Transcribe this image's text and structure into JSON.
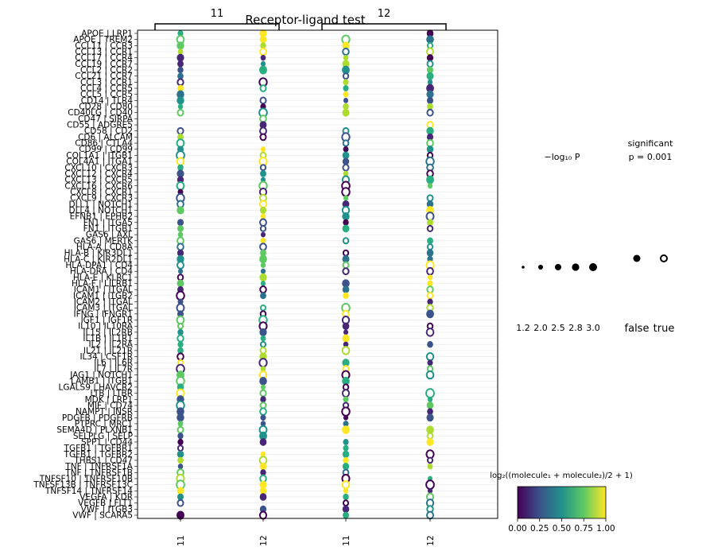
{
  "chart_data": {
    "type": "scatter",
    "title": "Receptor-ligand test",
    "groups": [
      {
        "label": "11",
        "columns": [
          "11",
          "12"
        ]
      },
      {
        "label": "12",
        "columns": [
          "11",
          "12"
        ]
      }
    ],
    "x_tick_labels": [
      "11",
      "12",
      "11",
      "12"
    ],
    "row_labels": [
      "APOE | LRP1",
      "APOE | TREM2",
      "CCL11 | CCR3",
      "CCL13 | CCR1",
      "CCL17 | CCR4",
      "CCL19 | CCR7",
      "CCL2 | CCR2",
      "CCL21 | CCR7",
      "CCL3 | CCR1",
      "CCL4 | CCR5",
      "CCL5 | CCR5",
      "CD14 | TLR4",
      "CD28 | CD80",
      "CD40LG | CD40",
      "CD47 | SIRPA",
      "CD55 | ADGRE5",
      "CD58 | CD2",
      "CD6 | ALCAM",
      "CD86 | CTLA4",
      "CD99 | CD99",
      "COL1A1 | ITGB1",
      "COL4A1 | ITGA1",
      "CXCL10 | CXCR3",
      "CXCL12 | CXCR4",
      "CXCL13 | CXCR5",
      "CXCL16 | CXCR6",
      "CXCL8 | CXCR1",
      "CXCL9 | CXCR3",
      "DLL1 | NOTCH1",
      "DLL4 | NOTCH1",
      "EFNB1 | EPHB2",
      "FN1 | ITGA5",
      "FN1 | ITGB1",
      "GAS6 | AXL",
      "GAS6 | MERTK",
      "HLA-A | CD8A",
      "HLA-B | KIR3DL1",
      "HLA-C | KIR2DL1",
      "HLA-DPA1 | CD4",
      "HLA-DRA | CD4",
      "HLA-E | KLRC1",
      "HLA-F | LILRB1",
      "ICAM1 | ITGAL",
      "ICAM1 | ITGB2",
      "ICAM2 | ITGAL",
      "ICAM3 | ITGAL",
      "IFNG | IFNGR1",
      "IGF1 | IGF1R",
      "IL10 | IL10RA",
      "IL15 | IL2RB",
      "IL1B | IL1R1",
      "IL2 | IL2RA",
      "IL21 | IL21R",
      "IL34 | CSF1R",
      "IL6 | IL6R",
      "IL7 | IL7R",
      "JAG1 | NOTCH1",
      "LAMB1 | ITGB1",
      "LGALS9 | HAVCR2",
      "LTB | LTBR",
      "MDK | LRP1",
      "MIF | CD74",
      "NAMPT | INSR",
      "PDGFB | PDGFRB",
      "PTPRC | MRC1",
      "SEMA4D | PLXNB1",
      "SELPLG | SELP",
      "SPP1 | CD44",
      "TGFB1 | TGFBR1",
      "TGFB1 | TGFBR2",
      "THBS1 | CD47",
      "TNF | TNFRSF1A",
      "TNF | TNFRSF1B",
      "TNFSF10 | TNFRSF10B",
      "TNFSF13B | TNFRSF13C",
      "TNFSF14 | TNFRSF14",
      "VEGFA | KDR",
      "VEGFB | FLT1",
      "VWF | ITGB3",
      "VWF | SCARA5"
    ],
    "size_legend": {
      "title": "−log₁₀ P",
      "values": [
        1.2,
        2.0,
        2.5,
        2.8,
        3.0
      ]
    },
    "significance_legend": {
      "title_line1": "significant",
      "title_line2": "p = 0.001",
      "labels": [
        "false",
        "true"
      ]
    },
    "colorbar": {
      "label": "log₂((molecule₁ + molecule₂)/2 + 1)",
      "ticks": [
        "0.00",
        "0.25",
        "0.50",
        "0.75",
        "1.00"
      ],
      "range": [
        0,
        1
      ]
    },
    "grid": true
  }
}
